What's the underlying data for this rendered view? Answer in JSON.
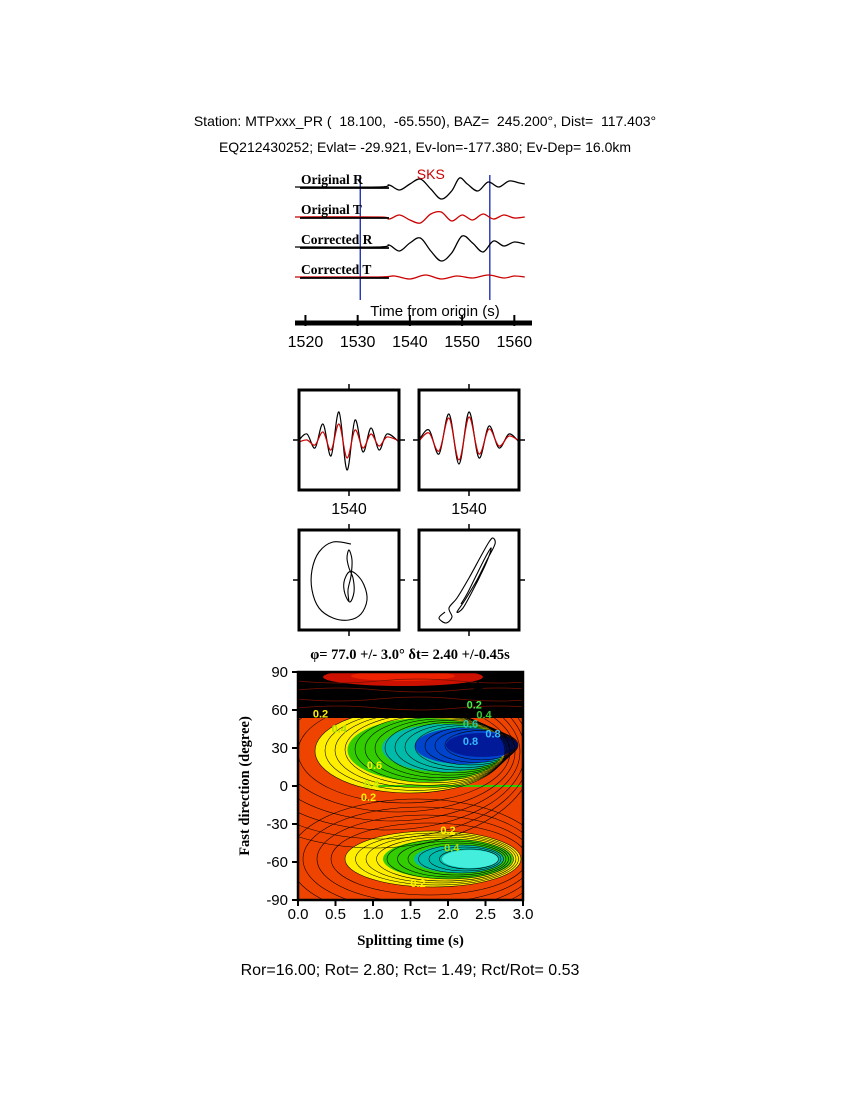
{
  "header": {
    "line1": "Station: MTPxxx_PR (  18.100,  -65.550), BAZ=  245.200°, Dist=  117.403°",
    "line2": "EQ212430252; Evlat= -29.921, Ev-lon=-177.380; Ev-Dep= 16.0km"
  },
  "footer": {
    "results": "Ror=16.00; Rot= 2.80; Rct= 1.49; Rct/Rot= 0.53"
  },
  "chart_data": [
    {
      "id": "seismograms",
      "type": "line",
      "xlabel": "Time from origin (s)",
      "xlim": [
        1518,
        1563
      ],
      "xticks": [
        1520,
        1530,
        1540,
        1550,
        1560
      ],
      "phase_label": "SKS",
      "phase_color": "#cc0000",
      "phase_time": 1544,
      "window": [
        1530.5,
        1555.3
      ],
      "window_color": "#2233bb",
      "series": [
        {
          "name": "Original R",
          "color": "#000000",
          "points": [
            [
              1518,
              0
            ],
            [
              1534,
              0
            ],
            [
              1536,
              2
            ],
            [
              1538,
              -3
            ],
            [
              1540,
              3
            ],
            [
              1542,
              8
            ],
            [
              1544,
              -2
            ],
            [
              1546,
              -12
            ],
            [
              1548,
              -4
            ],
            [
              1549.5,
              9
            ],
            [
              1551,
              3
            ],
            [
              1553,
              -4
            ],
            [
              1555,
              5
            ],
            [
              1557,
              0
            ],
            [
              1559,
              6
            ],
            [
              1561,
              4
            ],
            [
              1562,
              3
            ]
          ]
        },
        {
          "name": "Original T",
          "color": "#cc0000",
          "points": [
            [
              1518,
              0
            ],
            [
              1534,
              0
            ],
            [
              1536,
              -2
            ],
            [
              1538,
              2
            ],
            [
              1540,
              -3
            ],
            [
              1542,
              -6
            ],
            [
              1544,
              3
            ],
            [
              1546,
              5
            ],
            [
              1548,
              -4
            ],
            [
              1550,
              2
            ],
            [
              1552,
              -3
            ],
            [
              1554,
              3
            ],
            [
              1556,
              -2
            ],
            [
              1558,
              2
            ],
            [
              1560,
              -1
            ],
            [
              1562,
              0
            ]
          ]
        },
        {
          "name": "Corrected R",
          "color": "#000000",
          "points": [
            [
              1518,
              0
            ],
            [
              1534,
              0
            ],
            [
              1536,
              2
            ],
            [
              1538,
              -4
            ],
            [
              1540,
              4
            ],
            [
              1542,
              9
            ],
            [
              1544,
              -4
            ],
            [
              1546,
              -14
            ],
            [
              1548,
              -6
            ],
            [
              1550,
              11
            ],
            [
              1552,
              4
            ],
            [
              1554,
              -5
            ],
            [
              1556,
              6
            ],
            [
              1558,
              1
            ],
            [
              1560,
              5
            ],
            [
              1562,
              3
            ]
          ]
        },
        {
          "name": "Corrected T",
          "color": "#cc0000",
          "points": [
            [
              1518,
              0
            ],
            [
              1534,
              0
            ],
            [
              1537,
              1
            ],
            [
              1540,
              -2
            ],
            [
              1543,
              2
            ],
            [
              1546,
              -2
            ],
            [
              1549,
              1
            ],
            [
              1552,
              -1
            ],
            [
              1555,
              2
            ],
            [
              1558,
              -1
            ],
            [
              1560,
              1
            ],
            [
              1562,
              0
            ]
          ]
        }
      ]
    },
    {
      "id": "window-waveforms",
      "type": "line",
      "panels": [
        {
          "xtick_label": "1540",
          "series": [
            {
              "color": "#000000",
              "points": [
                [
                  0,
                  50
                ],
                [
                  8,
                  44
                ],
                [
                  16,
                  58
                ],
                [
                  24,
                  34
                ],
                [
                  32,
                  66
                ],
                [
                  40,
                  22
                ],
                [
                  48,
                  80
                ],
                [
                  56,
                  30
                ],
                [
                  64,
                  62
                ],
                [
                  72,
                  38
                ],
                [
                  80,
                  60
                ],
                [
                  88,
                  44
                ],
                [
                  100,
                  52
                ]
              ]
            },
            {
              "color": "#cc0000",
              "points": [
                [
                  0,
                  52
                ],
                [
                  8,
                  50
                ],
                [
                  16,
                  55
                ],
                [
                  24,
                  42
                ],
                [
                  32,
                  60
                ],
                [
                  40,
                  34
                ],
                [
                  48,
                  68
                ],
                [
                  56,
                  40
                ],
                [
                  64,
                  58
                ],
                [
                  72,
                  44
                ],
                [
                  80,
                  56
                ],
                [
                  88,
                  47
                ],
                [
                  100,
                  51
                ]
              ]
            }
          ]
        },
        {
          "xtick_label": "1540",
          "series": [
            {
              "color": "#000000",
              "points": [
                [
                  0,
                  50
                ],
                [
                  10,
                  40
                ],
                [
                  20,
                  64
                ],
                [
                  30,
                  24
                ],
                [
                  40,
                  74
                ],
                [
                  50,
                  22
                ],
                [
                  60,
                  68
                ],
                [
                  70,
                  36
                ],
                [
                  80,
                  58
                ],
                [
                  90,
                  44
                ],
                [
                  100,
                  52
                ]
              ]
            },
            {
              "color": "#cc0000",
              "points": [
                [
                  0,
                  51
                ],
                [
                  10,
                  43
                ],
                [
                  20,
                  61
                ],
                [
                  30,
                  28
                ],
                [
                  40,
                  70
                ],
                [
                  50,
                  27
                ],
                [
                  60,
                  64
                ],
                [
                  70,
                  39
                ],
                [
                  80,
                  56
                ],
                [
                  90,
                  46
                ],
                [
                  100,
                  51
                ]
              ]
            }
          ]
        }
      ]
    },
    {
      "id": "particle-motion",
      "type": "line",
      "panels": [
        {
          "points": [
            [
              52,
              14
            ],
            [
              34,
              12
            ],
            [
              20,
              22
            ],
            [
              13,
              40
            ],
            [
              13,
              60
            ],
            [
              20,
              78
            ],
            [
              34,
              88
            ],
            [
              50,
              90
            ],
            [
              62,
              84
            ],
            [
              68,
              70
            ],
            [
              65,
              55
            ],
            [
              57,
              44
            ],
            [
              50,
              42
            ],
            [
              45,
              52
            ],
            [
              46,
              64
            ],
            [
              51,
              72
            ],
            [
              55,
              62
            ],
            [
              54,
              48
            ],
            [
              50,
              38
            ],
            [
              48,
              28
            ],
            [
              50,
              20
            ],
            [
              53,
              30
            ],
            [
              52,
              46
            ],
            [
              49,
              60
            ],
            [
              50,
              72
            ]
          ]
        },
        {
          "points": [
            [
              26,
              82
            ],
            [
              20,
              88
            ],
            [
              27,
              93
            ],
            [
              33,
              87
            ],
            [
              30,
              78
            ],
            [
              38,
              68
            ],
            [
              50,
              48
            ],
            [
              62,
              26
            ],
            [
              70,
              12
            ],
            [
              74,
              8
            ],
            [
              76,
              14
            ],
            [
              68,
              30
            ],
            [
              58,
              50
            ],
            [
              46,
              70
            ],
            [
              38,
              82
            ],
            [
              44,
              78
            ],
            [
              54,
              60
            ],
            [
              64,
              40
            ],
            [
              70,
              26
            ],
            [
              72,
              18
            ],
            [
              66,
              28
            ],
            [
              56,
              48
            ],
            [
              48,
              64
            ],
            [
              42,
              74
            ]
          ]
        }
      ]
    },
    {
      "id": "splitting-contour",
      "type": "heatmap",
      "title": "φ= 77.0 +/- 3.0° δt= 2.40 +/-0.45s",
      "xlabel": "Splitting time (s)",
      "ylabel": "Fast direction (degree)",
      "xlim": [
        0,
        3
      ],
      "ylim": [
        -90,
        90
      ],
      "xticks": [
        "0.0",
        "0.5",
        "1.0",
        "1.5",
        "2.0",
        "2.5",
        "3.0"
      ],
      "yticks": [
        90,
        60,
        30,
        0,
        -30,
        -60,
        -90
      ],
      "best": {
        "phi": 77.0,
        "phi_err": 3.0,
        "dt": 2.4,
        "dt_err": 0.45,
        "star": [
          2.4,
          77
        ]
      },
      "contour_labels": [
        {
          "text": "0.2",
          "x": 0.3,
          "y": 57,
          "color": "#ffee00"
        },
        {
          "text": "0.4",
          "x": 0.55,
          "y": 45,
          "color": "#aadd00"
        },
        {
          "text": "0.2",
          "x": 2.35,
          "y": 64,
          "color": "#44ee44"
        },
        {
          "text": "0.4",
          "x": 2.48,
          "y": 56,
          "color": "#33cc33"
        },
        {
          "text": "0.6",
          "x": 2.3,
          "y": 49,
          "color": "#22ccaa"
        },
        {
          "text": "0.8",
          "x": 2.6,
          "y": 41,
          "color": "#33bbff"
        },
        {
          "text": "0.8",
          "x": 2.3,
          "y": 35,
          "color": "#33bbff"
        },
        {
          "text": "0.6",
          "x": 1.02,
          "y": 16,
          "color": "#ffee00"
        },
        {
          "text": "0.4",
          "x": 0.98,
          "y": 1,
          "color": "#bbee00"
        },
        {
          "text": "0.2",
          "x": 0.94,
          "y": -9,
          "color": "#ffee00"
        },
        {
          "text": "0.2",
          "x": 2.0,
          "y": -35,
          "color": "#ffee00"
        },
        {
          "text": "0.4",
          "x": 2.05,
          "y": -49,
          "color": "#aadd00"
        },
        {
          "text": "0.2",
          "x": 1.6,
          "y": -77,
          "color": "#ffee00"
        }
      ],
      "palette": {
        "high": "#ee4400",
        "top_band": "#000000",
        "top_blob": "#cc1100",
        "ring_yellow": "#ffee00",
        "ring_green": "#33cc00",
        "ring_teal": "#00bbaa",
        "ring_blue": "#0044cc",
        "ring_navy": "#001a99",
        "bottom_cyan": "#44eedd",
        "zero_line_green": "#33cc00",
        "contour_line": "#000000",
        "star": "#000000"
      }
    }
  ]
}
